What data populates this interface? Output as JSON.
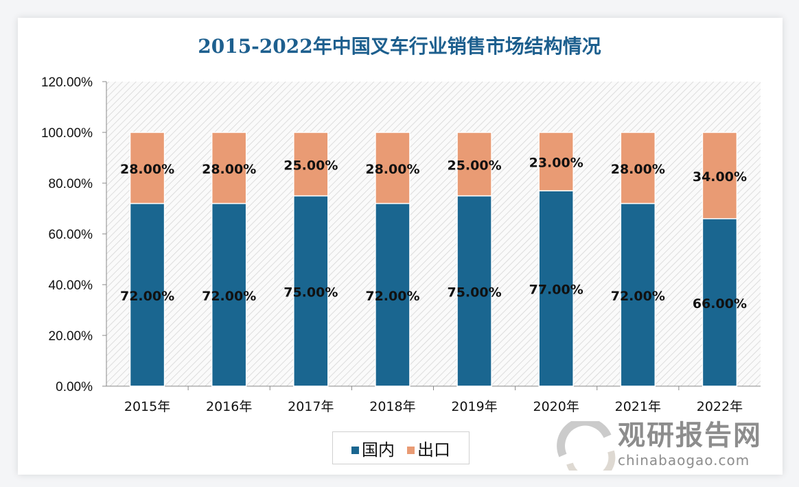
{
  "chart_data": {
    "type": "bar",
    "stacked": true,
    "title": "2015-2022年中国叉车行业销售市场结构情况",
    "categories": [
      "2015年",
      "2016年",
      "2017年",
      "2018年",
      "2019年",
      "2020年",
      "2021年",
      "2022年"
    ],
    "series": [
      {
        "name": "国内",
        "color": "#1a6690",
        "values": [
          72,
          72,
          75,
          72,
          75,
          77,
          72,
          66
        ],
        "labels": [
          "72.00%",
          "72.00%",
          "75.00%",
          "72.00%",
          "75.00%",
          "77.00%",
          "72.00%",
          "66.00%"
        ]
      },
      {
        "name": "出口",
        "color": "#e99b74",
        "values": [
          28,
          28,
          25,
          28,
          25,
          23,
          28,
          34
        ],
        "labels": [
          "28.00%",
          "28.00%",
          "25.00%",
          "28.00%",
          "25.00%",
          "23.00%",
          "28.00%",
          "34.00%"
        ]
      }
    ],
    "ylim": [
      0,
      120
    ],
    "yticks": [
      "0.00%",
      "20.00%",
      "40.00%",
      "60.00%",
      "80.00%",
      "100.00%",
      "120.00%"
    ],
    "legend": "bottom",
    "grid": false,
    "background": "diagonal-hatch"
  },
  "watermark": {
    "name": "观研报告网",
    "domain": "chinabaogao.com"
  }
}
